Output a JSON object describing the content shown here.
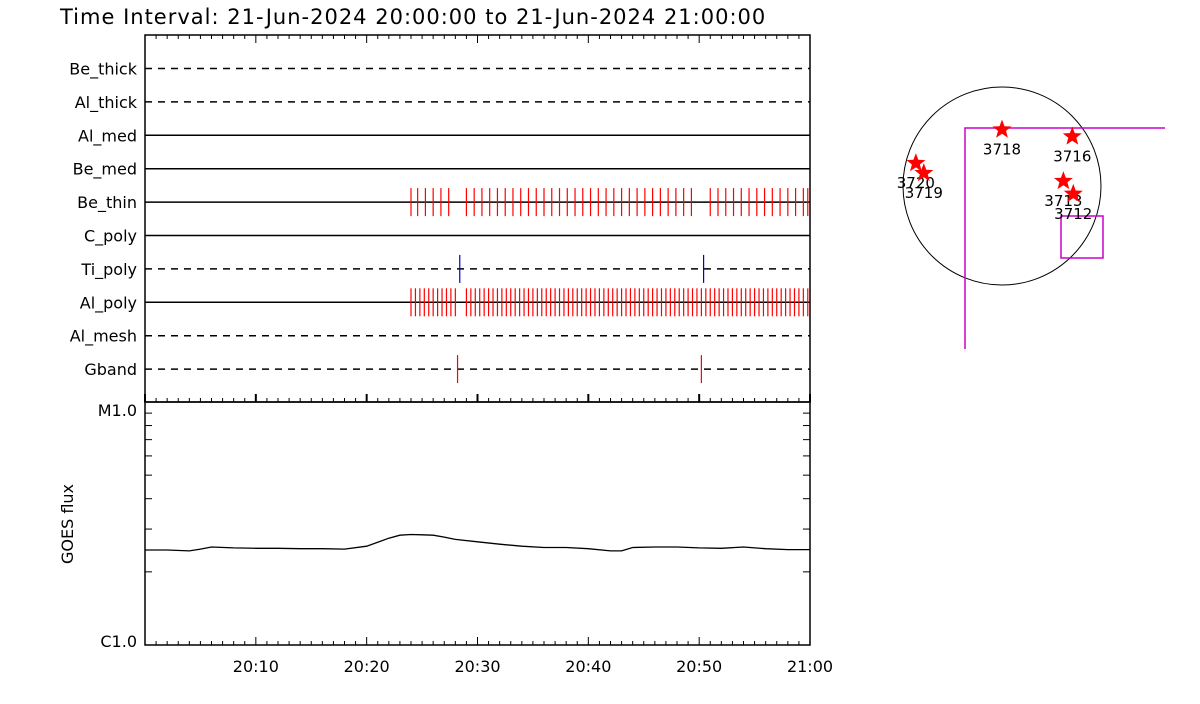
{
  "title": "Time Interval: 21-Jun-2024 20:00:00 to 21-Jun-2024 21:00:00",
  "chart_data": [
    {
      "type": "timeline",
      "x_start_minute": 0,
      "x_end_minute": 60,
      "channels": [
        {
          "name": "Be_thick",
          "line": "dashed",
          "events": [],
          "event_color": "#ff0000"
        },
        {
          "name": "Al_thick",
          "line": "dashed",
          "events": [],
          "event_color": "#ff0000"
        },
        {
          "name": "Al_med",
          "line": "solid",
          "events": [],
          "event_color": "#ff0000"
        },
        {
          "name": "Be_med",
          "line": "solid",
          "events": [],
          "event_color": "#ff0000"
        },
        {
          "name": "Be_thin",
          "line": "solid",
          "event_color": "#ff0000",
          "events": [
            24.0,
            24.6,
            25.3,
            26.0,
            26.7,
            27.4,
            29.0,
            29.7,
            30.4,
            31.1,
            31.8,
            32.5,
            33.2,
            33.9,
            34.6,
            35.3,
            36.0,
            36.7,
            37.4,
            38.1,
            38.8,
            39.5,
            40.2,
            40.9,
            41.6,
            42.3,
            43.0,
            43.7,
            44.4,
            45.1,
            45.8,
            46.5,
            47.2,
            47.9,
            48.6,
            49.3,
            51.0,
            51.7,
            52.4,
            53.1,
            53.8,
            54.5,
            55.2,
            55.9,
            56.6,
            57.3,
            58.0,
            58.7,
            59.4,
            59.8
          ]
        },
        {
          "name": "C_poly",
          "line": "solid",
          "events": [],
          "event_color": "#ff0000"
        },
        {
          "name": "Ti_poly",
          "line": "dashed",
          "event_color": "#0000cc",
          "events": [
            28.4,
            50.4
          ]
        },
        {
          "name": "Al_poly",
          "line": "solid",
          "event_color": "#ff0000",
          "events": [
            24.0,
            24.4,
            24.8,
            25.2,
            25.6,
            26.0,
            26.4,
            26.8,
            27.2,
            27.6,
            28.0,
            29.0,
            29.4,
            29.8,
            30.2,
            30.6,
            31.0,
            31.4,
            31.8,
            32.2,
            32.6,
            33.0,
            33.4,
            33.8,
            34.2,
            34.6,
            35.0,
            35.4,
            35.8,
            36.2,
            36.6,
            37.0,
            37.4,
            37.8,
            38.2,
            38.6,
            39.0,
            39.4,
            39.8,
            40.2,
            40.6,
            41.0,
            41.4,
            41.8,
            42.2,
            42.6,
            43.0,
            43.4,
            43.8,
            44.2,
            44.6,
            45.0,
            45.4,
            45.8,
            46.2,
            46.6,
            47.0,
            47.4,
            47.8,
            48.2,
            48.6,
            49.0,
            49.4,
            49.8,
            50.2,
            50.6,
            51.0,
            51.4,
            51.8,
            52.2,
            52.6,
            53.0,
            53.4,
            53.8,
            54.2,
            54.6,
            55.0,
            55.4,
            55.8,
            56.2,
            56.6,
            57.0,
            57.4,
            57.8,
            58.2,
            58.6,
            59.0,
            59.4,
            59.8
          ]
        },
        {
          "name": "Al_mesh",
          "line": "dashed",
          "events": [],
          "event_color": "#ff0000"
        },
        {
          "name": "Gband",
          "line": "dashed",
          "event_color": "#ff0000",
          "events": [
            28.2,
            50.2
          ]
        }
      ]
    },
    {
      "type": "line",
      "ylabel": "GOES flux",
      "y_scale": "log",
      "ytick_labels": [
        "M1.0",
        "C1.0"
      ],
      "ylim": [
        1e-06,
        1e-05
      ],
      "xtick_labels": [
        "20:10",
        "20:20",
        "20:30",
        "20:40",
        "20:50",
        "21:00"
      ],
      "xtick_minutes": [
        10,
        20,
        30,
        40,
        50,
        60
      ],
      "series": [
        {
          "color": "#000000",
          "x": [
            0,
            2,
            4,
            5,
            6,
            8,
            10,
            12,
            14,
            16,
            18,
            20,
            22,
            23,
            24,
            25,
            26,
            27,
            28,
            30,
            32,
            34,
            36,
            38,
            40,
            42,
            43,
            44,
            46,
            48,
            50,
            52,
            54,
            56,
            58,
            60
          ],
          "y": [
            2.46e-06,
            2.46e-06,
            2.44e-06,
            2.48e-06,
            2.53e-06,
            2.51e-06,
            2.5e-06,
            2.5e-06,
            2.49e-06,
            2.49e-06,
            2.48e-06,
            2.55e-06,
            2.75e-06,
            2.83e-06,
            2.85e-06,
            2.84e-06,
            2.83e-06,
            2.78e-06,
            2.72e-06,
            2.66e-06,
            2.6e-06,
            2.55e-06,
            2.52e-06,
            2.52e-06,
            2.49e-06,
            2.44e-06,
            2.44e-06,
            2.52e-06,
            2.53e-06,
            2.53e-06,
            2.51e-06,
            2.5e-06,
            2.53e-06,
            2.49e-06,
            2.47e-06,
            2.47e-06
          ]
        }
      ]
    },
    {
      "type": "scatter",
      "marker": "star",
      "marker_color": "#ff0000",
      "disk_outline_color": "#000000",
      "fov_color": "#cc00cc",
      "points": [
        {
          "label": "3718",
          "x": 0.0,
          "y": 0.57
        },
        {
          "label": "3716",
          "x": 0.71,
          "y": 0.5
        },
        {
          "label": "3720",
          "x": -0.87,
          "y": 0.23
        },
        {
          "label": "3719",
          "x": -0.79,
          "y": 0.13
        },
        {
          "label": "3713",
          "x": 0.62,
          "y": 0.05
        },
        {
          "label": "3712",
          "x": 0.72,
          "y": -0.08
        }
      ]
    }
  ]
}
